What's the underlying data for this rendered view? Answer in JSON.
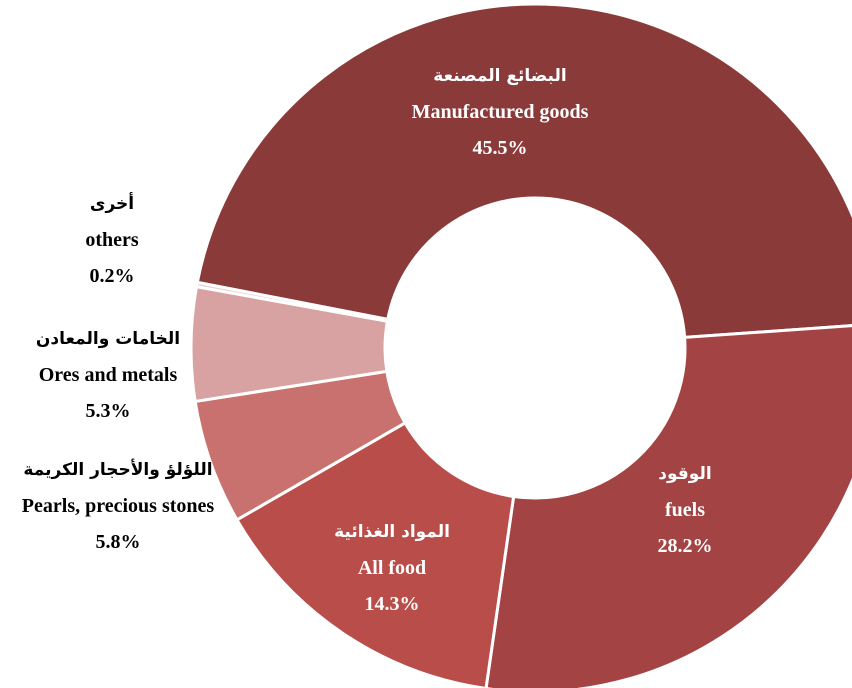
{
  "chart_data": {
    "type": "donut",
    "categories": [
      "Manufactured goods",
      "fuels",
      "All food",
      "Pearls, precious stones",
      "Ores and metals",
      "others"
    ],
    "categories_ar": [
      "البضائع المصنعة",
      "الوقود",
      "المواد الغذائية",
      "اللؤلؤ والأحجار الكريمة",
      "الخامات والمعادن",
      "أخرى"
    ],
    "values": [
      45.5,
      28.2,
      14.3,
      5.8,
      5.3,
      0.2
    ],
    "value_labels": [
      "45.5%",
      "28.2%",
      "14.3%",
      "5.8%",
      "5.3%",
      "0.2%"
    ],
    "colors": [
      "#8b3a3a",
      "#a34343",
      "#b84d49",
      "#c8716e",
      "#d9a2a2",
      "#e9cccc"
    ]
  }
}
